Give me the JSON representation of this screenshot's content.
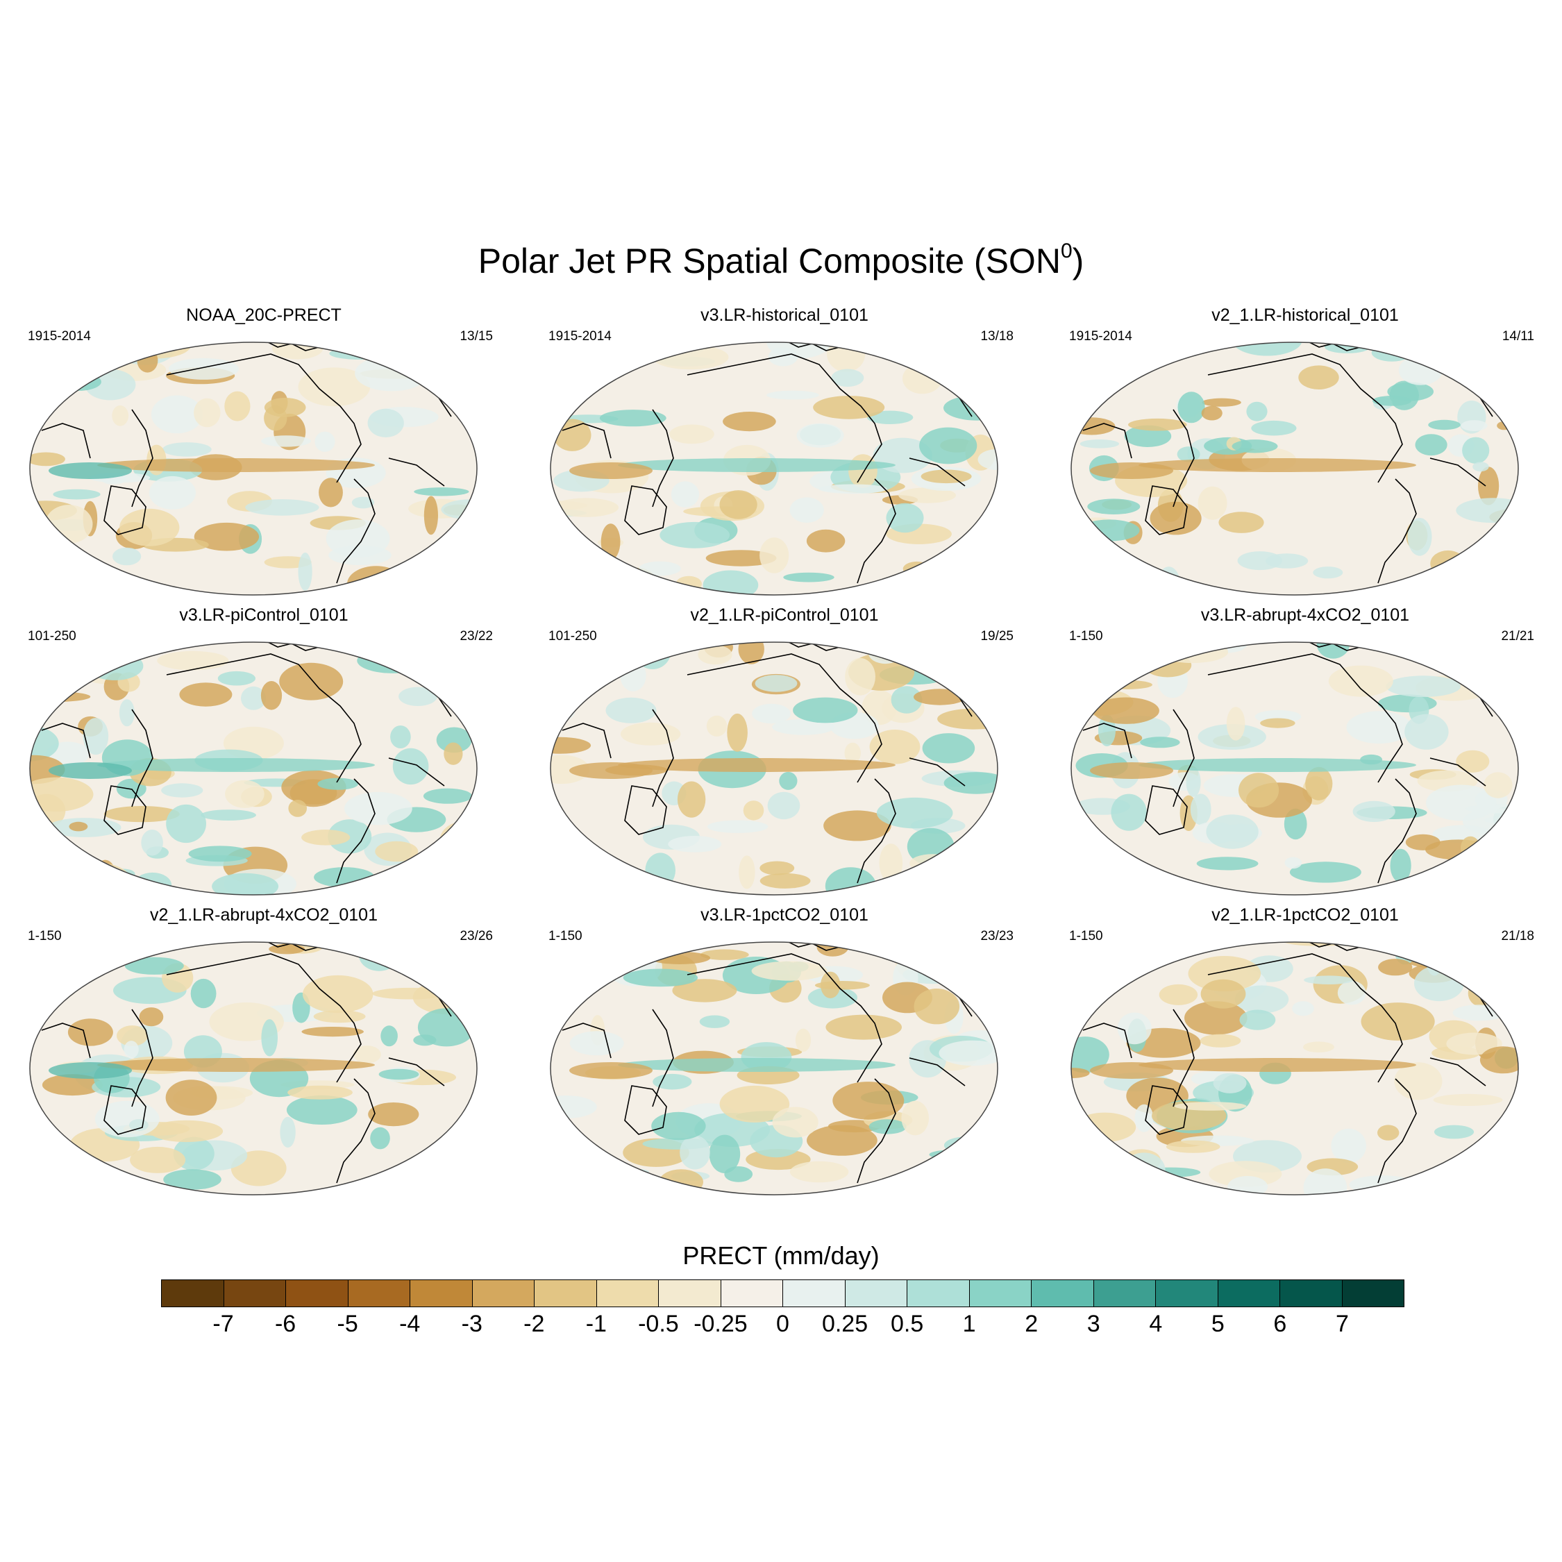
{
  "figure": {
    "title": "Polar Jet PR Spatial Composite (SON",
    "title_sup": "0",
    "title_end": ")"
  },
  "panels": [
    {
      "title": "NOAA_20C-PRECT",
      "years": "1915-2014",
      "count": "13/15"
    },
    {
      "title": "v3.LR-historical_0101",
      "years": "1915-2014",
      "count": "13/18"
    },
    {
      "title": "v2_1.LR-historical_0101",
      "years": "1915-2014",
      "count": "14/11"
    },
    {
      "title": "v3.LR-piControl_0101",
      "years": "101-250",
      "count": "23/22"
    },
    {
      "title": "v2_1.LR-piControl_0101",
      "years": "101-250",
      "count": "19/25"
    },
    {
      "title": "v3.LR-abrupt-4xCO2_0101",
      "years": "1-150",
      "count": "21/21"
    },
    {
      "title": "v2_1.LR-abrupt-4xCO2_0101",
      "years": "1-150",
      "count": "23/26"
    },
    {
      "title": "v3.LR-1pctCO2_0101",
      "years": "1-150",
      "count": "23/23"
    },
    {
      "title": "v2_1.LR-1pctCO2_0101",
      "years": "1-150",
      "count": "21/18"
    }
  ],
  "colorbar": {
    "title": "PRECT (mm/day)",
    "labels": [
      "-7",
      "-6",
      "-5",
      "-4",
      "-3",
      "-2",
      "-1",
      "-0.5",
      "-0.25",
      "0",
      "0.25",
      "0.5",
      "1",
      "2",
      "3",
      "4",
      "5",
      "6",
      "7"
    ],
    "colors": [
      "#5e3a0c",
      "#774611",
      "#8f5214",
      "#a86a22",
      "#c08838",
      "#d4a85e",
      "#e2c584",
      "#eedcac",
      "#f3ead0",
      "#f5f0e8",
      "#e8f1ef",
      "#cfe9e5",
      "#aee0d8",
      "#8ad3c6",
      "#5fbcae",
      "#3d9f91",
      "#22877a",
      "#0c6c60",
      "#05564b",
      "#033e35"
    ]
  },
  "chart_data": {
    "type": "map",
    "title": "Polar Jet PR Spatial Composite (SON0)",
    "variable": "PRECT",
    "units": "mm/day",
    "levels": [
      -7,
      -6,
      -5,
      -4,
      -3,
      -2,
      -1,
      -0.5,
      -0.25,
      0,
      0.25,
      0.5,
      1,
      2,
      3,
      4,
      5,
      6,
      7
    ]
  }
}
